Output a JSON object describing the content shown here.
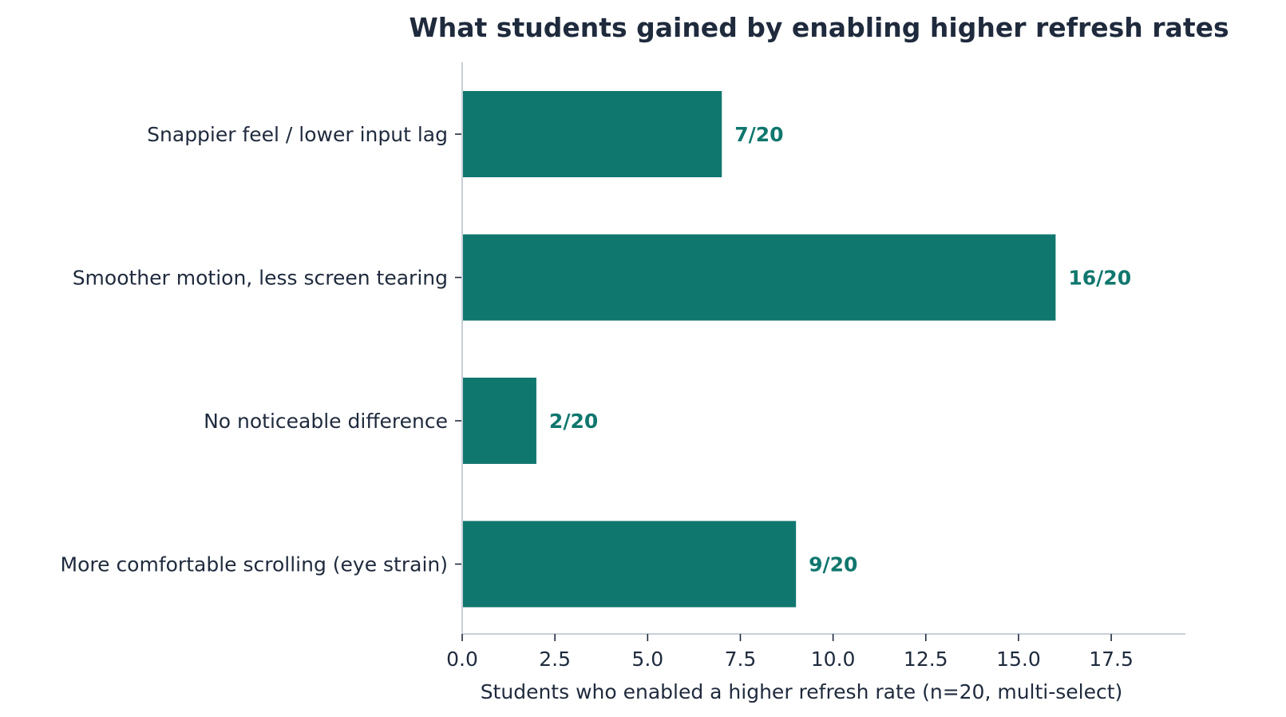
{
  "colors": {
    "bar": "#10776e",
    "value_label": "#10776e",
    "text": "#1f2a3d",
    "axis": "#c7cfd8"
  },
  "chart_data": {
    "type": "bar",
    "orientation": "horizontal",
    "title": "What students gained by enabling higher refresh rates",
    "xlabel": "Students who enabled a higher refresh rate (n=20, multi-select)",
    "ylabel": "",
    "categories": [
      "Snappier feel / lower input lag",
      "Smoother motion, less screen tearing",
      "No noticeable difference",
      "More comfortable scrolling (eye strain)"
    ],
    "values": [
      7,
      16,
      2,
      9
    ],
    "value_labels": [
      "7/20",
      "16/20",
      "2/20",
      "9/20"
    ],
    "xlim": [
      0,
      19.5
    ],
    "xticks": [
      0,
      2.5,
      5,
      7.5,
      10,
      12.5,
      15,
      17.5
    ],
    "xtick_labels": [
      "0.0",
      "2.5",
      "5.0",
      "7.5",
      "10.0",
      "12.5",
      "15.0",
      "17.5"
    ],
    "grid": false,
    "legend": "none"
  }
}
